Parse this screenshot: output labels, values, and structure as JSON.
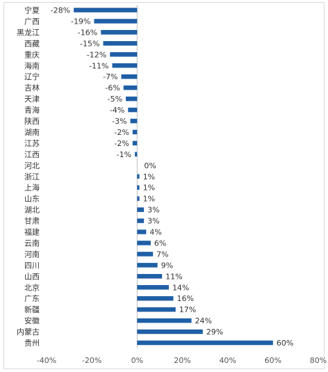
{
  "chart_data": {
    "type": "bar",
    "orientation": "horizontal",
    "categories": [
      "宁夏",
      "广西",
      "黑龙江",
      "西藏",
      "重庆",
      "海南",
      "辽宁",
      "吉林",
      "天津",
      "青海",
      "陕西",
      "湖南",
      "江苏",
      "江西",
      "河北",
      "浙江",
      "上海",
      "山东",
      "湖北",
      "甘肃",
      "福建",
      "云南",
      "河南",
      "四川",
      "山西",
      "北京",
      "广东",
      "新疆",
      "安徽",
      "内蒙古",
      "贵州"
    ],
    "values": [
      -28,
      -19,
      -16,
      -15,
      -12,
      -11,
      -7,
      -6,
      -5,
      -4,
      -3,
      -2,
      -2,
      -1,
      0,
      1,
      1,
      1,
      3,
      3,
      4,
      6,
      7,
      9,
      11,
      14,
      16,
      17,
      24,
      29,
      60
    ],
    "value_labels": [
      "-28%",
      "-19%",
      "-16%",
      "-15%",
      "-12%",
      "-11%",
      "-7%",
      "-6%",
      "-5%",
      "-4%",
      "-3%",
      "-2%",
      "-2%",
      "-1%",
      "0%",
      "1%",
      "1%",
      "1%",
      "3%",
      "3%",
      "4%",
      "6%",
      "7%",
      "9%",
      "11%",
      "14%",
      "16%",
      "17%",
      "24%",
      "29%",
      "60%"
    ],
    "xlim": [
      -40,
      80
    ],
    "x_ticks": [
      -40,
      -20,
      0,
      20,
      40,
      60,
      80
    ],
    "x_tick_labels": [
      "-40%",
      "-20%",
      "0%",
      "20%",
      "40%",
      "60%",
      "80%"
    ],
    "title": "",
    "xlabel": "",
    "ylabel": "",
    "grid": false,
    "legend": "none",
    "bar_color": "#1f5fa6",
    "border_color": "#d9d9d9",
    "axis_color": "#bfbfbf"
  }
}
